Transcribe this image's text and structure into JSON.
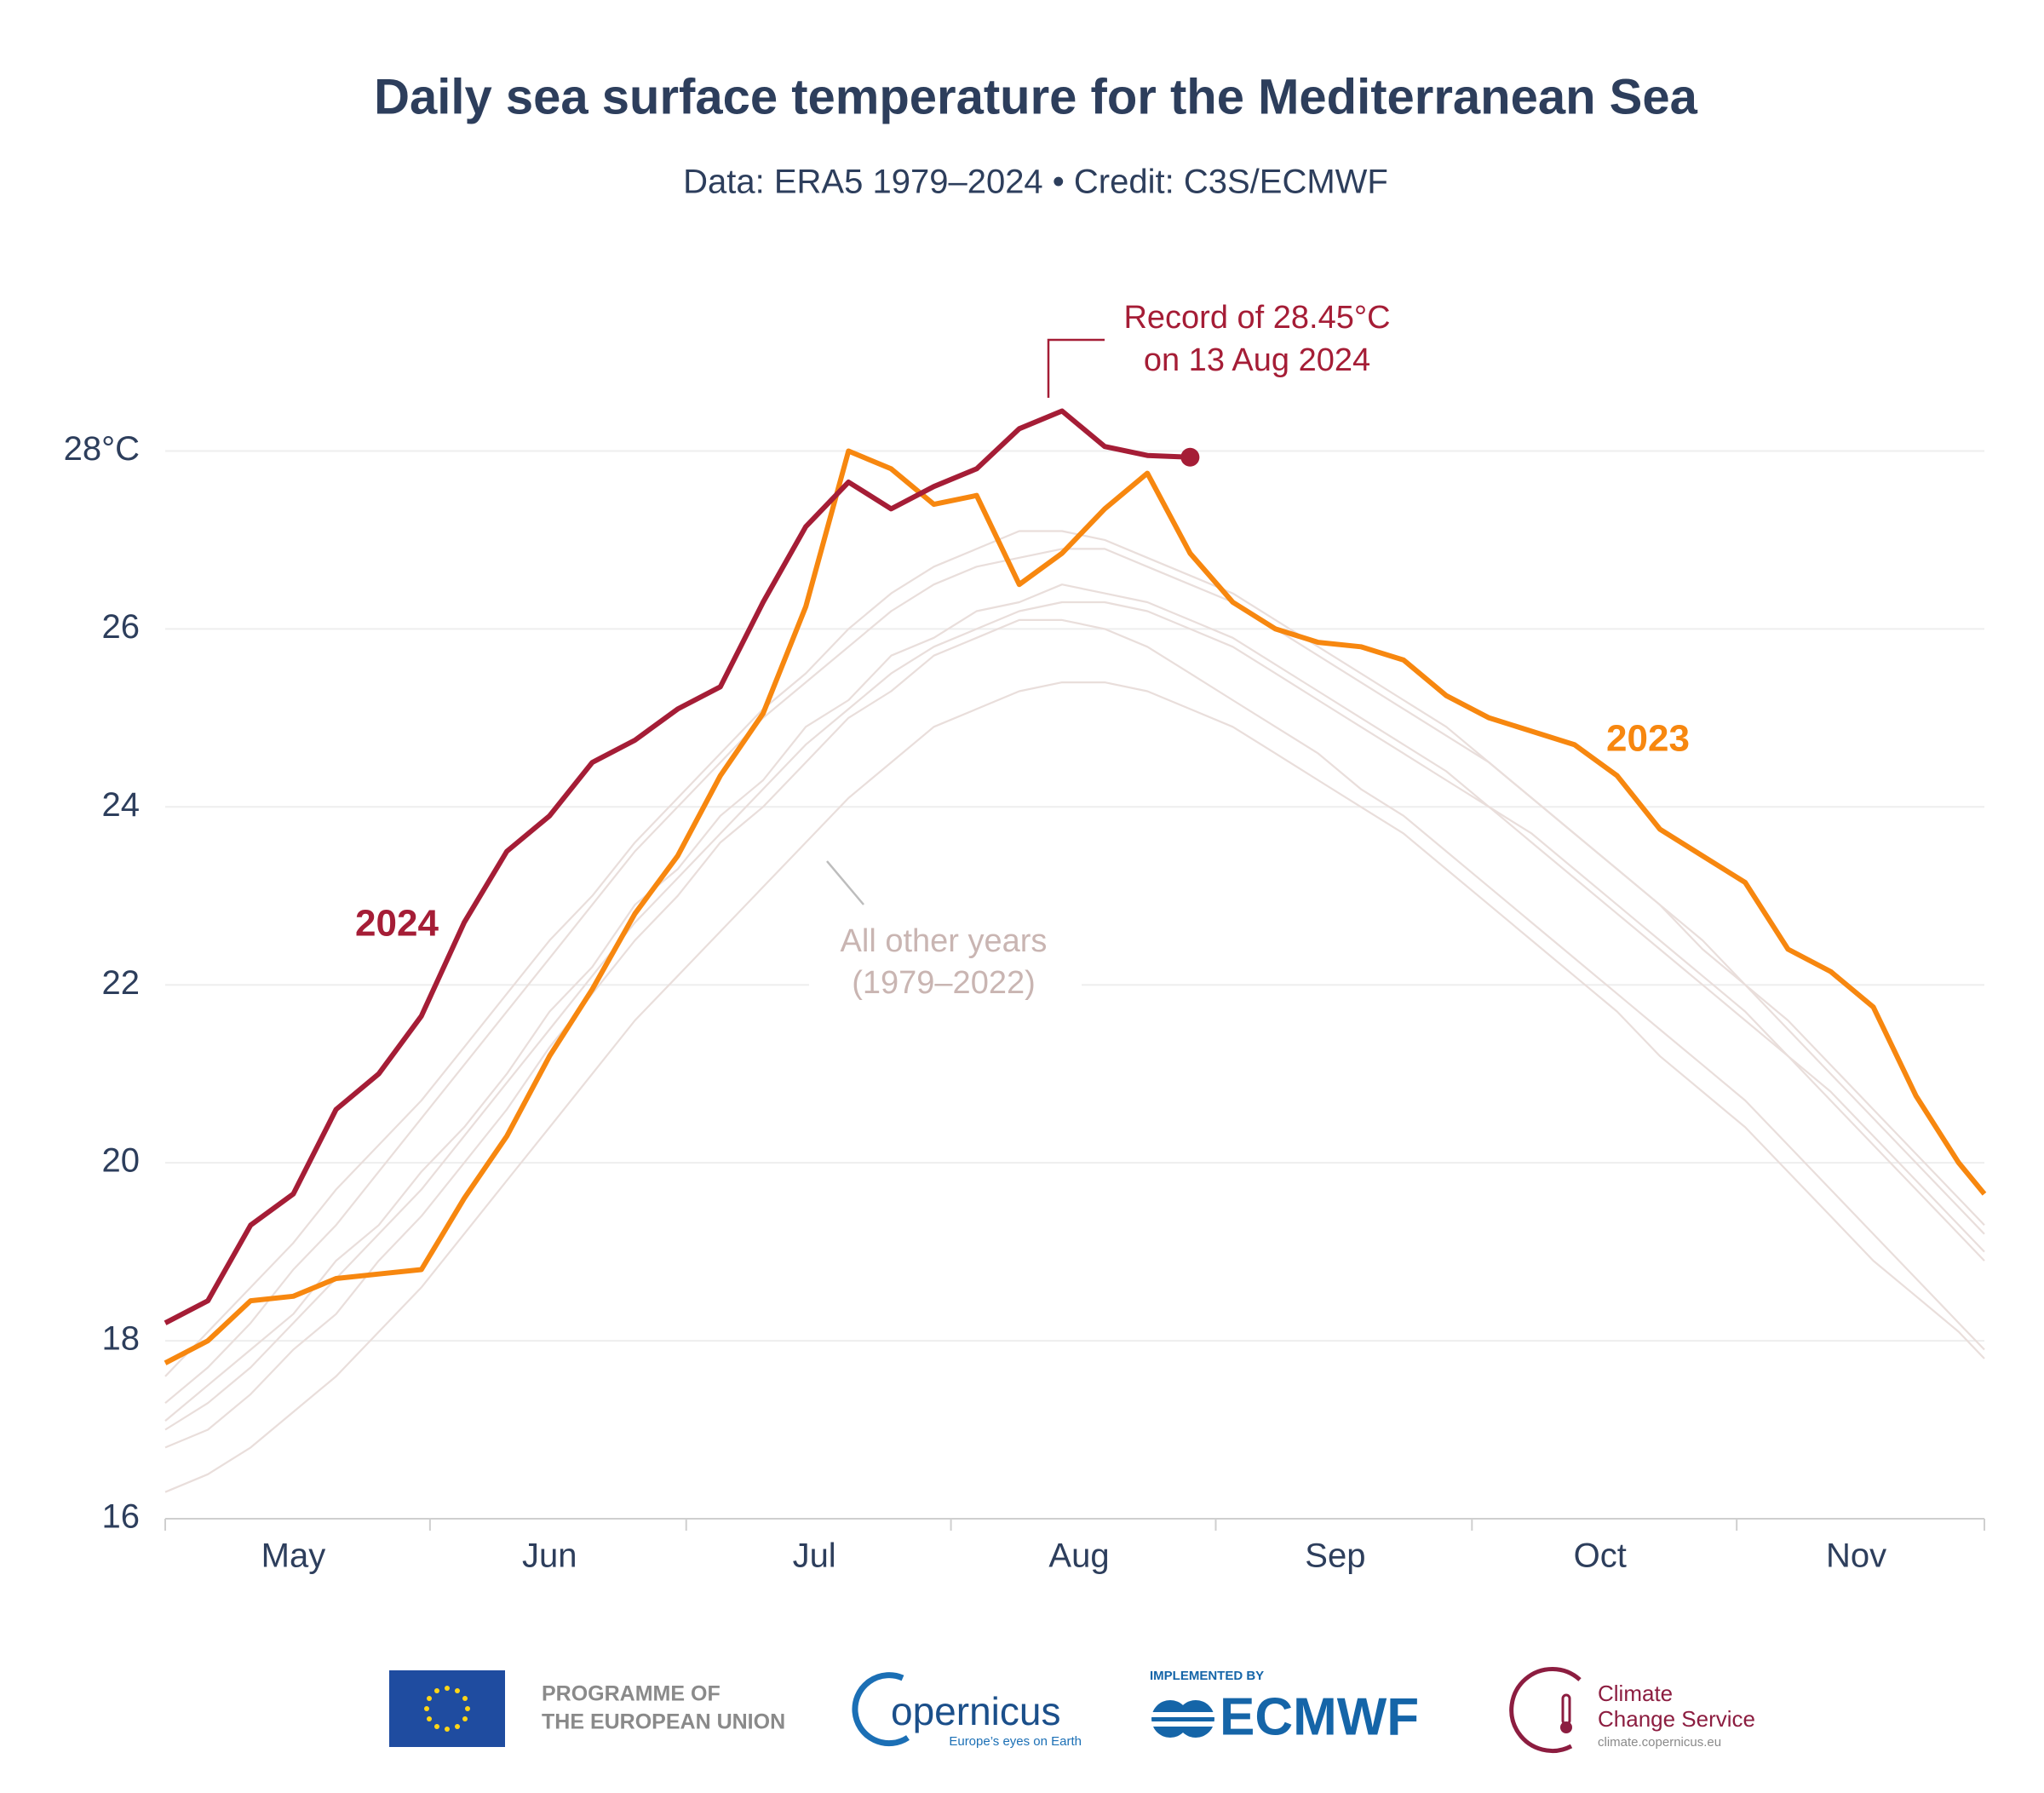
{
  "chart_data": {
    "type": "line",
    "title": "Daily sea surface temperature for the Mediterranean Sea",
    "subtitle": "Data: ERA5 1979–2024 • Credit: C3S/ECMWF",
    "x": [
      0,
      5,
      10,
      15,
      20,
      25,
      30,
      35,
      40,
      45,
      50,
      55,
      60,
      65,
      70,
      75,
      80,
      85,
      90,
      95,
      100,
      105,
      110,
      115,
      120,
      125,
      130,
      135,
      140,
      145,
      150,
      155,
      160,
      165,
      170,
      175,
      180,
      185,
      190,
      195,
      200,
      205,
      210,
      213
    ],
    "xlim": [
      0,
      213
    ],
    "xticks": [
      {
        "value": 15,
        "label": "May"
      },
      {
        "value": 45,
        "label": "Jun"
      },
      {
        "value": 76,
        "label": "Jul"
      },
      {
        "value": 107,
        "label": "Aug"
      },
      {
        "value": 137,
        "label": "Sep"
      },
      {
        "value": 168,
        "label": "Oct"
      },
      {
        "value": 198,
        "label": "Nov"
      }
    ],
    "xminorticks": [
      31,
      61,
      92,
      123,
      153,
      184
    ],
    "ylim": [
      16,
      29
    ],
    "yticks": [
      16,
      18,
      20,
      22,
      24,
      26,
      {
        "value": 28,
        "label": "28°C"
      }
    ],
    "grid": true,
    "series": [
      {
        "color": "#e9dedb",
        "values": [
          17.6,
          18.1,
          18.6,
          19.1,
          19.7,
          20.2,
          20.7,
          21.3,
          21.9,
          22.5,
          23.0,
          23.6,
          24.1,
          24.6,
          25.1,
          25.5,
          26.0,
          26.4,
          26.7,
          26.9,
          27.1,
          27.1,
          27.0,
          26.8,
          26.6,
          26.4,
          26.1,
          25.8,
          25.5,
          25.2,
          24.9,
          24.5,
          24.1,
          23.7,
          23.3,
          22.9,
          22.4,
          22.0,
          21.5,
          21.0,
          20.5,
          20.0,
          19.5,
          19.2
        ]
      },
      {
        "color": "#e9dedb",
        "values": [
          16.3,
          16.5,
          16.8,
          17.2,
          17.6,
          18.1,
          18.6,
          19.2,
          19.8,
          20.4,
          21.0,
          21.6,
          22.1,
          22.6,
          23.1,
          23.6,
          24.1,
          24.5,
          24.9,
          25.1,
          25.3,
          25.4,
          25.4,
          25.3,
          25.1,
          24.9,
          24.6,
          24.3,
          24.0,
          23.7,
          23.3,
          22.9,
          22.5,
          22.1,
          21.7,
          21.2,
          20.8,
          20.4,
          19.9,
          19.4,
          18.9,
          18.5,
          18.1,
          17.8
        ]
      },
      {
        "color": "#e9dedb",
        "values": [
          17.1,
          17.5,
          17.9,
          18.3,
          18.9,
          19.3,
          19.9,
          20.4,
          21.0,
          21.7,
          22.2,
          22.9,
          23.3,
          23.9,
          24.3,
          24.9,
          25.2,
          25.7,
          25.9,
          26.2,
          26.3,
          26.5,
          26.4,
          26.3,
          26.1,
          25.9,
          25.6,
          25.3,
          25.0,
          24.7,
          24.4,
          24.0,
          23.7,
          23.3,
          22.9,
          22.5,
          22.1,
          21.7,
          21.2,
          20.8,
          20.3,
          19.8,
          19.3,
          19.0
        ]
      },
      {
        "color": "#e9dedb",
        "values": [
          16.8,
          17.0,
          17.4,
          17.9,
          18.3,
          18.9,
          19.4,
          20.0,
          20.6,
          21.3,
          21.9,
          22.5,
          23.0,
          23.6,
          24.0,
          24.5,
          25.0,
          25.3,
          25.7,
          25.9,
          26.1,
          26.1,
          26.0,
          25.8,
          25.5,
          25.2,
          24.9,
          24.6,
          24.2,
          23.9,
          23.5,
          23.1,
          22.7,
          22.3,
          21.9,
          21.5,
          21.1,
          20.7,
          20.2,
          19.7,
          19.2,
          18.7,
          18.2,
          17.9
        ]
      },
      {
        "color": "#e9dedb",
        "values": [
          17.3,
          17.7,
          18.2,
          18.8,
          19.3,
          19.9,
          20.5,
          21.1,
          21.7,
          22.3,
          22.9,
          23.5,
          24.0,
          24.5,
          25.0,
          25.4,
          25.8,
          26.2,
          26.5,
          26.7,
          26.8,
          26.9,
          26.9,
          26.7,
          26.5,
          26.3,
          26.0,
          25.7,
          25.4,
          25.1,
          24.8,
          24.5,
          24.1,
          23.7,
          23.3,
          22.9,
          22.5,
          22.0,
          21.6,
          21.1,
          20.6,
          20.1,
          19.6,
          19.3
        ]
      },
      {
        "color": "#e9dedb",
        "values": [
          17.0,
          17.3,
          17.7,
          18.2,
          18.7,
          19.2,
          19.7,
          20.3,
          20.9,
          21.5,
          22.1,
          22.7,
          23.2,
          23.7,
          24.2,
          24.7,
          25.1,
          25.5,
          25.8,
          26.0,
          26.2,
          26.3,
          26.3,
          26.2,
          26.0,
          25.8,
          25.5,
          25.2,
          24.9,
          24.6,
          24.3,
          24.0,
          23.6,
          23.2,
          22.8,
          22.4,
          22.0,
          21.6,
          21.2,
          20.7,
          20.2,
          19.7,
          19.2,
          18.9
        ]
      },
      {
        "name": "2023",
        "color": "#f7870f",
        "values": [
          17.75,
          18.0,
          18.45,
          18.5,
          18.7,
          18.75,
          18.8,
          19.6,
          20.3,
          21.2,
          21.95,
          22.8,
          23.45,
          24.35,
          25.05,
          26.25,
          28.0,
          27.8,
          27.4,
          27.5,
          26.5,
          26.85,
          27.35,
          27.75,
          26.85,
          26.3,
          26.0,
          25.85,
          25.8,
          25.65,
          25.25,
          25.0,
          24.85,
          24.7,
          24.35,
          23.75,
          23.45,
          23.15,
          22.4,
          22.15,
          21.75,
          20.75,
          20.0,
          19.65
        ]
      },
      {
        "name": "2024",
        "color": "#a51d36",
        "values": [
          18.2,
          18.45,
          19.3,
          19.65,
          20.6,
          21.0,
          21.65,
          22.7,
          23.5,
          23.9,
          24.5,
          24.75,
          25.1,
          25.35,
          26.3,
          27.15,
          27.65,
          27.35,
          27.6,
          27.8,
          28.25,
          28.45,
          28.05,
          27.95,
          27.93,
          null,
          null,
          null,
          null,
          null,
          null,
          null,
          null,
          null,
          null,
          null,
          null,
          null,
          null,
          null,
          null,
          null,
          null,
          null
        ]
      }
    ],
    "annotations": [
      {
        "text": [
          "Record of 28.45°C",
          "on 13 Aug 2024"
        ],
        "color": "#a51d36"
      },
      {
        "text": [
          "All other years",
          "(1979–2022)"
        ],
        "color": "#c9b5b2"
      }
    ]
  },
  "footer": {
    "eu": [
      "PROGRAMME OF",
      "THE EUROPEAN UNION"
    ],
    "copernicus": "opernicus",
    "copernicus_tagline": "Europe’s eyes on Earth",
    "ecmwf_top": "IMPLEMENTED BY",
    "ecmwf": "ECMWF",
    "c3s": [
      "Climate",
      "Change Service"
    ],
    "c3s_url": "climate.copernicus.eu"
  }
}
